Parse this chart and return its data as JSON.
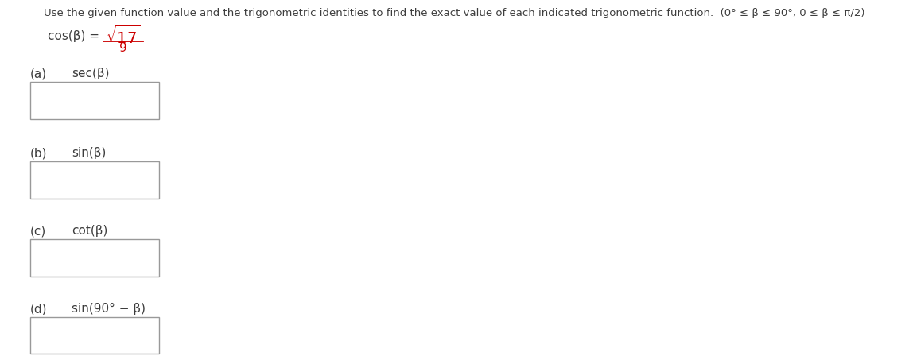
{
  "title": "Use the given function value and the trigonometric identities to find the exact value of each indicated trigonometric function.  (0° ≤ β ≤ 90°, 0 ≤ β ≤ π/2)",
  "given_label": "cos(β) =",
  "numerator": "17",
  "denominator": "9",
  "parts": [
    {
      "label": "(a)",
      "func": "sec(β)"
    },
    {
      "label": "(b)",
      "func": "sin(β)"
    },
    {
      "label": "(c)",
      "func": "cot(β)"
    },
    {
      "label": "(d)",
      "func": "sin(90° − β)"
    }
  ],
  "background_color": "#ffffff",
  "text_color": "#3d3d3d",
  "red_color": "#cc0000",
  "box_edge_color": "#999999",
  "title_fontsize": 9.5,
  "label_fontsize": 11,
  "func_fontsize": 11,
  "given_fontsize": 11,
  "sqrt_fontsize": 14
}
